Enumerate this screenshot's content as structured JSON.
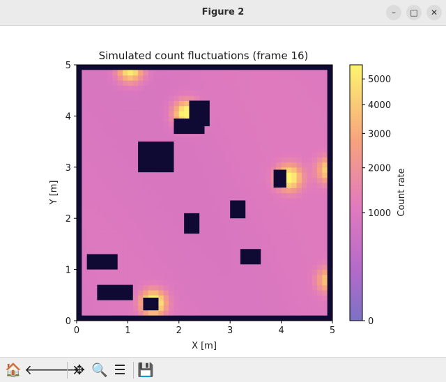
{
  "window": {
    "title": "Figure 2",
    "minimize_icon": "minimize-icon",
    "maximize_icon": "maximize-icon",
    "close_icon": "close-icon"
  },
  "toolbar": {
    "buttons": [
      {
        "name": "home-icon",
        "glyph": "🏠"
      },
      {
        "name": "back-arrow-icon",
        "glyph": "🡐"
      },
      {
        "name": "forward-arrow-icon",
        "glyph": "🡒"
      },
      {
        "name": "pan-move-icon",
        "glyph": "✥"
      },
      {
        "name": "zoom-magnifier-icon",
        "glyph": "🔍"
      },
      {
        "name": "configure-subplots-icon",
        "glyph": "☰"
      },
      {
        "name": "save-floppy-icon",
        "glyph": "💾"
      }
    ]
  },
  "chart_data": {
    "type": "heatmap",
    "title": "Simulated count fluctuations (frame 16)",
    "xlabel": "X [m]",
    "ylabel": "Y [m]",
    "xlim": [
      0,
      5
    ],
    "ylim": [
      0,
      5
    ],
    "xticks": [
      "0",
      "1",
      "2",
      "3",
      "4",
      "5"
    ],
    "yticks": [
      "0",
      "1",
      "2",
      "3",
      "4",
      "5"
    ],
    "colorbar": {
      "label": "Count rate",
      "ticks": [
        "0",
        "1000",
        "2000",
        "3000",
        "4000",
        "5000"
      ],
      "tick_values": [
        0,
        1000,
        2000,
        3000,
        4000,
        5000
      ],
      "max": 5600,
      "colormap": "plasma"
    },
    "background_rate": 900,
    "sources": [
      {
        "x": 1.5,
        "y": 0.35,
        "rate": 5600
      },
      {
        "x": 2.15,
        "y": 4.05,
        "rate": 5600
      },
      {
        "x": 4.15,
        "y": 2.8,
        "rate": 5000
      },
      {
        "x": 1.05,
        "y": 4.92,
        "rate": 4800
      },
      {
        "x": 4.95,
        "y": 0.8,
        "rate": 3300
      },
      {
        "x": 4.95,
        "y": 2.95,
        "rate": 3800
      }
    ],
    "obstacles": [
      {
        "x0": 1.2,
        "x1": 1.9,
        "y0": 2.9,
        "y1": 3.5
      },
      {
        "x0": 2.2,
        "x1": 2.6,
        "y0": 3.8,
        "y1": 4.3
      },
      {
        "x0": 1.9,
        "x1": 2.5,
        "y0": 3.65,
        "y1": 3.95
      },
      {
        "x0": 3.85,
        "x1": 4.1,
        "y0": 2.6,
        "y1": 2.95
      },
      {
        "x0": 3.0,
        "x1": 3.3,
        "y0": 2.0,
        "y1": 2.35
      },
      {
        "x0": 2.1,
        "x1": 2.4,
        "y0": 1.7,
        "y1": 2.1
      },
      {
        "x0": 3.2,
        "x1": 3.6,
        "y0": 1.1,
        "y1": 1.4
      },
      {
        "x0": 0.2,
        "x1": 0.8,
        "y0": 1.0,
        "y1": 1.3
      },
      {
        "x0": 0.4,
        "x1": 1.1,
        "y0": 0.4,
        "y1": 0.7
      },
      {
        "x0": 1.3,
        "x1": 1.6,
        "y0": 0.2,
        "y1": 0.45
      }
    ],
    "walls": [
      {
        "x0": 0.0,
        "x1": 5.0,
        "y0": 0.0,
        "y1": 0.1
      },
      {
        "x0": 0.0,
        "x1": 5.0,
        "y0": 4.9,
        "y1": 5.0
      },
      {
        "x0": 0.0,
        "x1": 0.1,
        "y0": 0.0,
        "y1": 5.0
      },
      {
        "x0": 4.9,
        "x1": 5.0,
        "y0": 0.0,
        "y1": 5.0
      }
    ]
  }
}
